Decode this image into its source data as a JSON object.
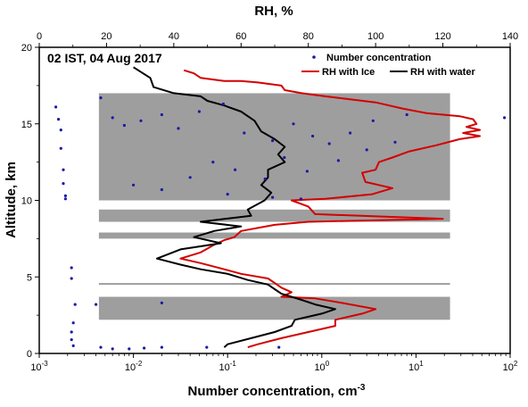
{
  "chart_data": {
    "type": "scatter",
    "annotation": "02 IST, 04 Aug 2017",
    "x_bottom": {
      "label": "Number concentration, cm",
      "label_sup": "-3",
      "scale": "log",
      "range": [
        0.001,
        100
      ],
      "ticks": [
        {
          "value": 0.001,
          "base": "10",
          "exp": "-3"
        },
        {
          "value": 0.01,
          "base": "10",
          "exp": "-2"
        },
        {
          "value": 0.1,
          "base": "10",
          "exp": "-1"
        },
        {
          "value": 1,
          "base": "10",
          "exp": "0"
        },
        {
          "value": 10,
          "base": "10",
          "exp": "1"
        },
        {
          "value": 100,
          "base": "10",
          "exp": "2"
        }
      ]
    },
    "x_top": {
      "label": "RH, %",
      "range": [
        0,
        140
      ],
      "ticks": [
        "0",
        "20",
        "40",
        "60",
        "80",
        "100",
        "120",
        "140"
      ]
    },
    "y": {
      "label": "Altitude, km",
      "range": [
        0,
        20
      ],
      "ticks": [
        "0",
        "5",
        "10",
        "15",
        "20"
      ]
    },
    "legend": {
      "position": "top-right",
      "entries": [
        {
          "label": "Number concentration",
          "color": "#1a1aa6",
          "kind": "dots"
        },
        {
          "label": "RH with Ice",
          "color": "#d40000",
          "kind": "line"
        },
        {
          "label": "RH with water",
          "color": "#000000",
          "kind": "line"
        }
      ]
    },
    "cloud_layers_km": [
      [
        10.0,
        17.0
      ],
      [
        8.6,
        9.4
      ],
      [
        7.5,
        7.9
      ],
      [
        4.5,
        4.6
      ],
      [
        2.2,
        3.7
      ]
    ],
    "series": [
      {
        "name": "RH with Ice",
        "axis": "top",
        "color": "#d40000",
        "points": [
          [
            43,
            18.5
          ],
          [
            46,
            18.3
          ],
          [
            48,
            18.0
          ],
          [
            55,
            17.8
          ],
          [
            60,
            17.8
          ],
          [
            65,
            17.7
          ],
          [
            72,
            17.5
          ],
          [
            73,
            17.2
          ],
          [
            78,
            17.0
          ],
          [
            85,
            16.8
          ],
          [
            100,
            16.4
          ],
          [
            108,
            16.0
          ],
          [
            115,
            15.7
          ],
          [
            125,
            15.5
          ],
          [
            129,
            15.3
          ],
          [
            130,
            15.0
          ],
          [
            127,
            14.8
          ],
          [
            131,
            14.6
          ],
          [
            126,
            14.4
          ],
          [
            131,
            14.2
          ],
          [
            125,
            14.0
          ],
          [
            118,
            13.6
          ],
          [
            110,
            13.2
          ],
          [
            105,
            12.8
          ],
          [
            101,
            12.5
          ],
          [
            100,
            12.0
          ],
          [
            96,
            11.8
          ],
          [
            97,
            11.2
          ],
          [
            105,
            10.8
          ],
          [
            99,
            10.4
          ],
          [
            85,
            10.1
          ],
          [
            75,
            10.0
          ],
          [
            80,
            9.6
          ],
          [
            82,
            9.1
          ],
          [
            120,
            8.8
          ],
          [
            80,
            8.6
          ],
          [
            70,
            8.4
          ],
          [
            60,
            8.0
          ],
          [
            58,
            7.6
          ],
          [
            55,
            7.4
          ],
          [
            52,
            7.1
          ],
          [
            48,
            6.6
          ],
          [
            42,
            6.2
          ],
          [
            48,
            5.9
          ],
          [
            55,
            5.5
          ],
          [
            60,
            5.2
          ],
          [
            68,
            4.9
          ],
          [
            70,
            4.6
          ],
          [
            72,
            4.3
          ],
          [
            75,
            4.0
          ],
          [
            72,
            3.7
          ],
          [
            82,
            3.6
          ],
          [
            90,
            3.3
          ],
          [
            100,
            2.9
          ],
          [
            96,
            2.6
          ],
          [
            88,
            2.2
          ],
          [
            88,
            1.8
          ],
          [
            80,
            1.4
          ],
          [
            72,
            1.0
          ],
          [
            65,
            0.6
          ],
          [
            62,
            0.4
          ]
        ]
      },
      {
        "name": "RH with water",
        "axis": "top",
        "color": "#000000",
        "points": [
          [
            28,
            18.7
          ],
          [
            33,
            18.0
          ],
          [
            34,
            17.4
          ],
          [
            40,
            17.0
          ],
          [
            48,
            16.8
          ],
          [
            50,
            16.5
          ],
          [
            55,
            16.2
          ],
          [
            60,
            15.8
          ],
          [
            64,
            15.2
          ],
          [
            66,
            14.5
          ],
          [
            70,
            14.0
          ],
          [
            73,
            13.5
          ],
          [
            71,
            13.0
          ],
          [
            73,
            12.5
          ],
          [
            68,
            12.0
          ],
          [
            68,
            11.5
          ],
          [
            66,
            11.0
          ],
          [
            69,
            10.5
          ],
          [
            67,
            10.0
          ],
          [
            62,
            9.4
          ],
          [
            63,
            9.0
          ],
          [
            48,
            8.6
          ],
          [
            60,
            8.3
          ],
          [
            52,
            8.0
          ],
          [
            46,
            7.6
          ],
          [
            54,
            7.2
          ],
          [
            42,
            6.8
          ],
          [
            35,
            6.2
          ],
          [
            42,
            5.8
          ],
          [
            48,
            5.5
          ],
          [
            56,
            5.2
          ],
          [
            62,
            4.8
          ],
          [
            68,
            4.5
          ],
          [
            70,
            4.2
          ],
          [
            72,
            3.9
          ],
          [
            78,
            3.5
          ],
          [
            82,
            3.2
          ],
          [
            88,
            2.9
          ],
          [
            84,
            2.6
          ],
          [
            76,
            2.2
          ],
          [
            75,
            1.8
          ],
          [
            70,
            1.4
          ],
          [
            63,
            1.0
          ],
          [
            56,
            0.6
          ],
          [
            55,
            0.4
          ]
        ]
      },
      {
        "name": "Number concentration",
        "axis": "bottom",
        "color": "#1a1aa6",
        "points": [
          [
            0.0015,
            16.1
          ],
          [
            0.0016,
            15.3
          ],
          [
            0.0017,
            14.6
          ],
          [
            0.0017,
            13.4
          ],
          [
            0.0018,
            12.0
          ],
          [
            0.0018,
            11.1
          ],
          [
            0.0019,
            10.3
          ],
          [
            0.0019,
            10.1
          ],
          [
            0.0022,
            5.6
          ],
          [
            0.0022,
            4.9
          ],
          [
            0.0024,
            3.2
          ],
          [
            0.0023,
            2.0
          ],
          [
            0.0022,
            1.4
          ],
          [
            0.0022,
            0.9
          ],
          [
            0.0023,
            0.5
          ],
          [
            0.0045,
            0.4
          ],
          [
            0.006,
            0.3
          ],
          [
            0.009,
            0.3
          ],
          [
            0.013,
            0.35
          ],
          [
            0.02,
            0.4
          ],
          [
            0.004,
            3.2
          ],
          [
            0.02,
            3.3
          ],
          [
            0.0045,
            16.7
          ],
          [
            0.006,
            15.4
          ],
          [
            0.008,
            14.9
          ],
          [
            0.012,
            15.2
          ],
          [
            0.02,
            15.6
          ],
          [
            0.03,
            14.7
          ],
          [
            0.05,
            15.8
          ],
          [
            0.09,
            16.3
          ],
          [
            0.15,
            14.4
          ],
          [
            0.3,
            13.9
          ],
          [
            0.5,
            15.0
          ],
          [
            0.8,
            14.2
          ],
          [
            1.2,
            13.7
          ],
          [
            2.0,
            14.4
          ],
          [
            3.5,
            15.2
          ],
          [
            8,
            15.6
          ],
          [
            87,
            15.4
          ],
          [
            0.01,
            11.0
          ],
          [
            0.02,
            10.7
          ],
          [
            0.04,
            11.5
          ],
          [
            0.07,
            12.5
          ],
          [
            0.12,
            12.0
          ],
          [
            0.25,
            11.4
          ],
          [
            0.4,
            12.8
          ],
          [
            0.7,
            11.9
          ],
          [
            1.5,
            12.6
          ],
          [
            3,
            13.3
          ],
          [
            6,
            13.8
          ],
          [
            0.1,
            10.4
          ],
          [
            0.3,
            10.2
          ],
          [
            0.6,
            10.1
          ],
          [
            0.35,
            0.4
          ],
          [
            0.06,
            0.4
          ]
        ]
      }
    ]
  }
}
